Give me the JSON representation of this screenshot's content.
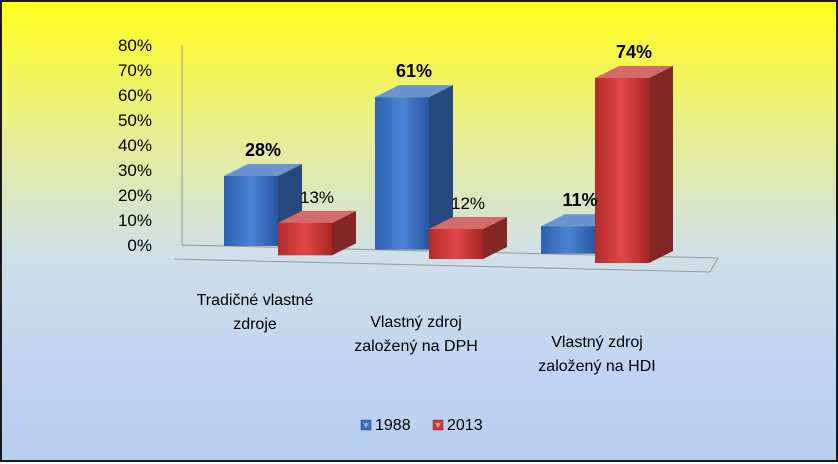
{
  "chart_data": {
    "type": "bar",
    "title": "",
    "categories": [
      [
        "Tradičné vlastné",
        "zdroje"
      ],
      [
        "Vlastný zdroj",
        "založený na DPH"
      ],
      [
        "Vlastný zdroj",
        "založený na HDI"
      ]
    ],
    "series": [
      {
        "name": "1988",
        "values": [
          28,
          61,
          11
        ],
        "labels": [
          "28%",
          "61%",
          "11%"
        ],
        "color": "#3a6fbf"
      },
      {
        "name": "2013",
        "values": [
          13,
          12,
          74
        ],
        "labels": [
          "13%",
          "12%",
          "74%"
        ],
        "color": "#c83a3a"
      }
    ],
    "yticks": [
      "0%",
      "10%",
      "20%",
      "30%",
      "40%",
      "50%",
      "60%",
      "70%",
      "80%"
    ],
    "ylim": [
      0,
      80
    ],
    "legend_position": "bottom",
    "style": "3d-clustered-column",
    "background": "yellow-to-blue gradient"
  }
}
